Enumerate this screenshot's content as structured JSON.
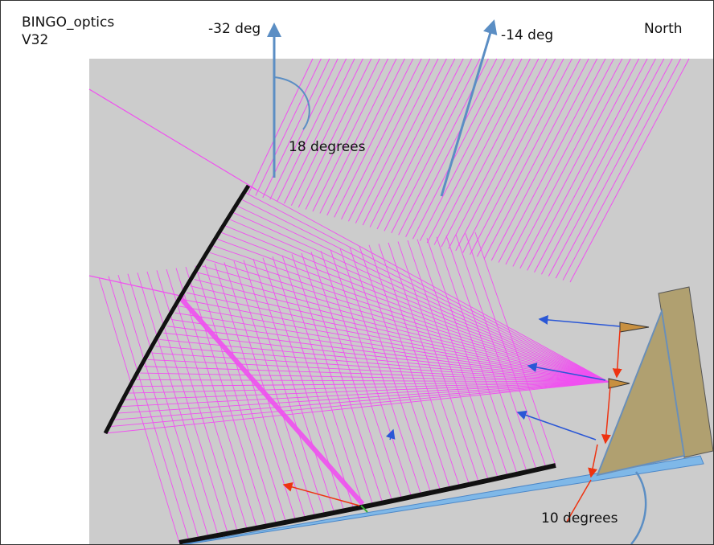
{
  "title_line1": "BINGO_optics",
  "title_line2": "V32",
  "labels": {
    "angle_a": "-32 deg",
    "angle_b": "-14 deg",
    "north": "North",
    "angle_between": "18 degrees",
    "angle_tilt": "10 degrees"
  },
  "colors": {
    "background": "#cccccc",
    "rays": "#f050f0",
    "mirror": "#111111",
    "horn_body": "#b0a070",
    "base_bar": "#7fb8e8",
    "pointer_arrow": "#5b8ec4",
    "blue_arrow": "#2a57d6",
    "red_arrow": "#ee3311",
    "feed_horn": "#c89040"
  }
}
